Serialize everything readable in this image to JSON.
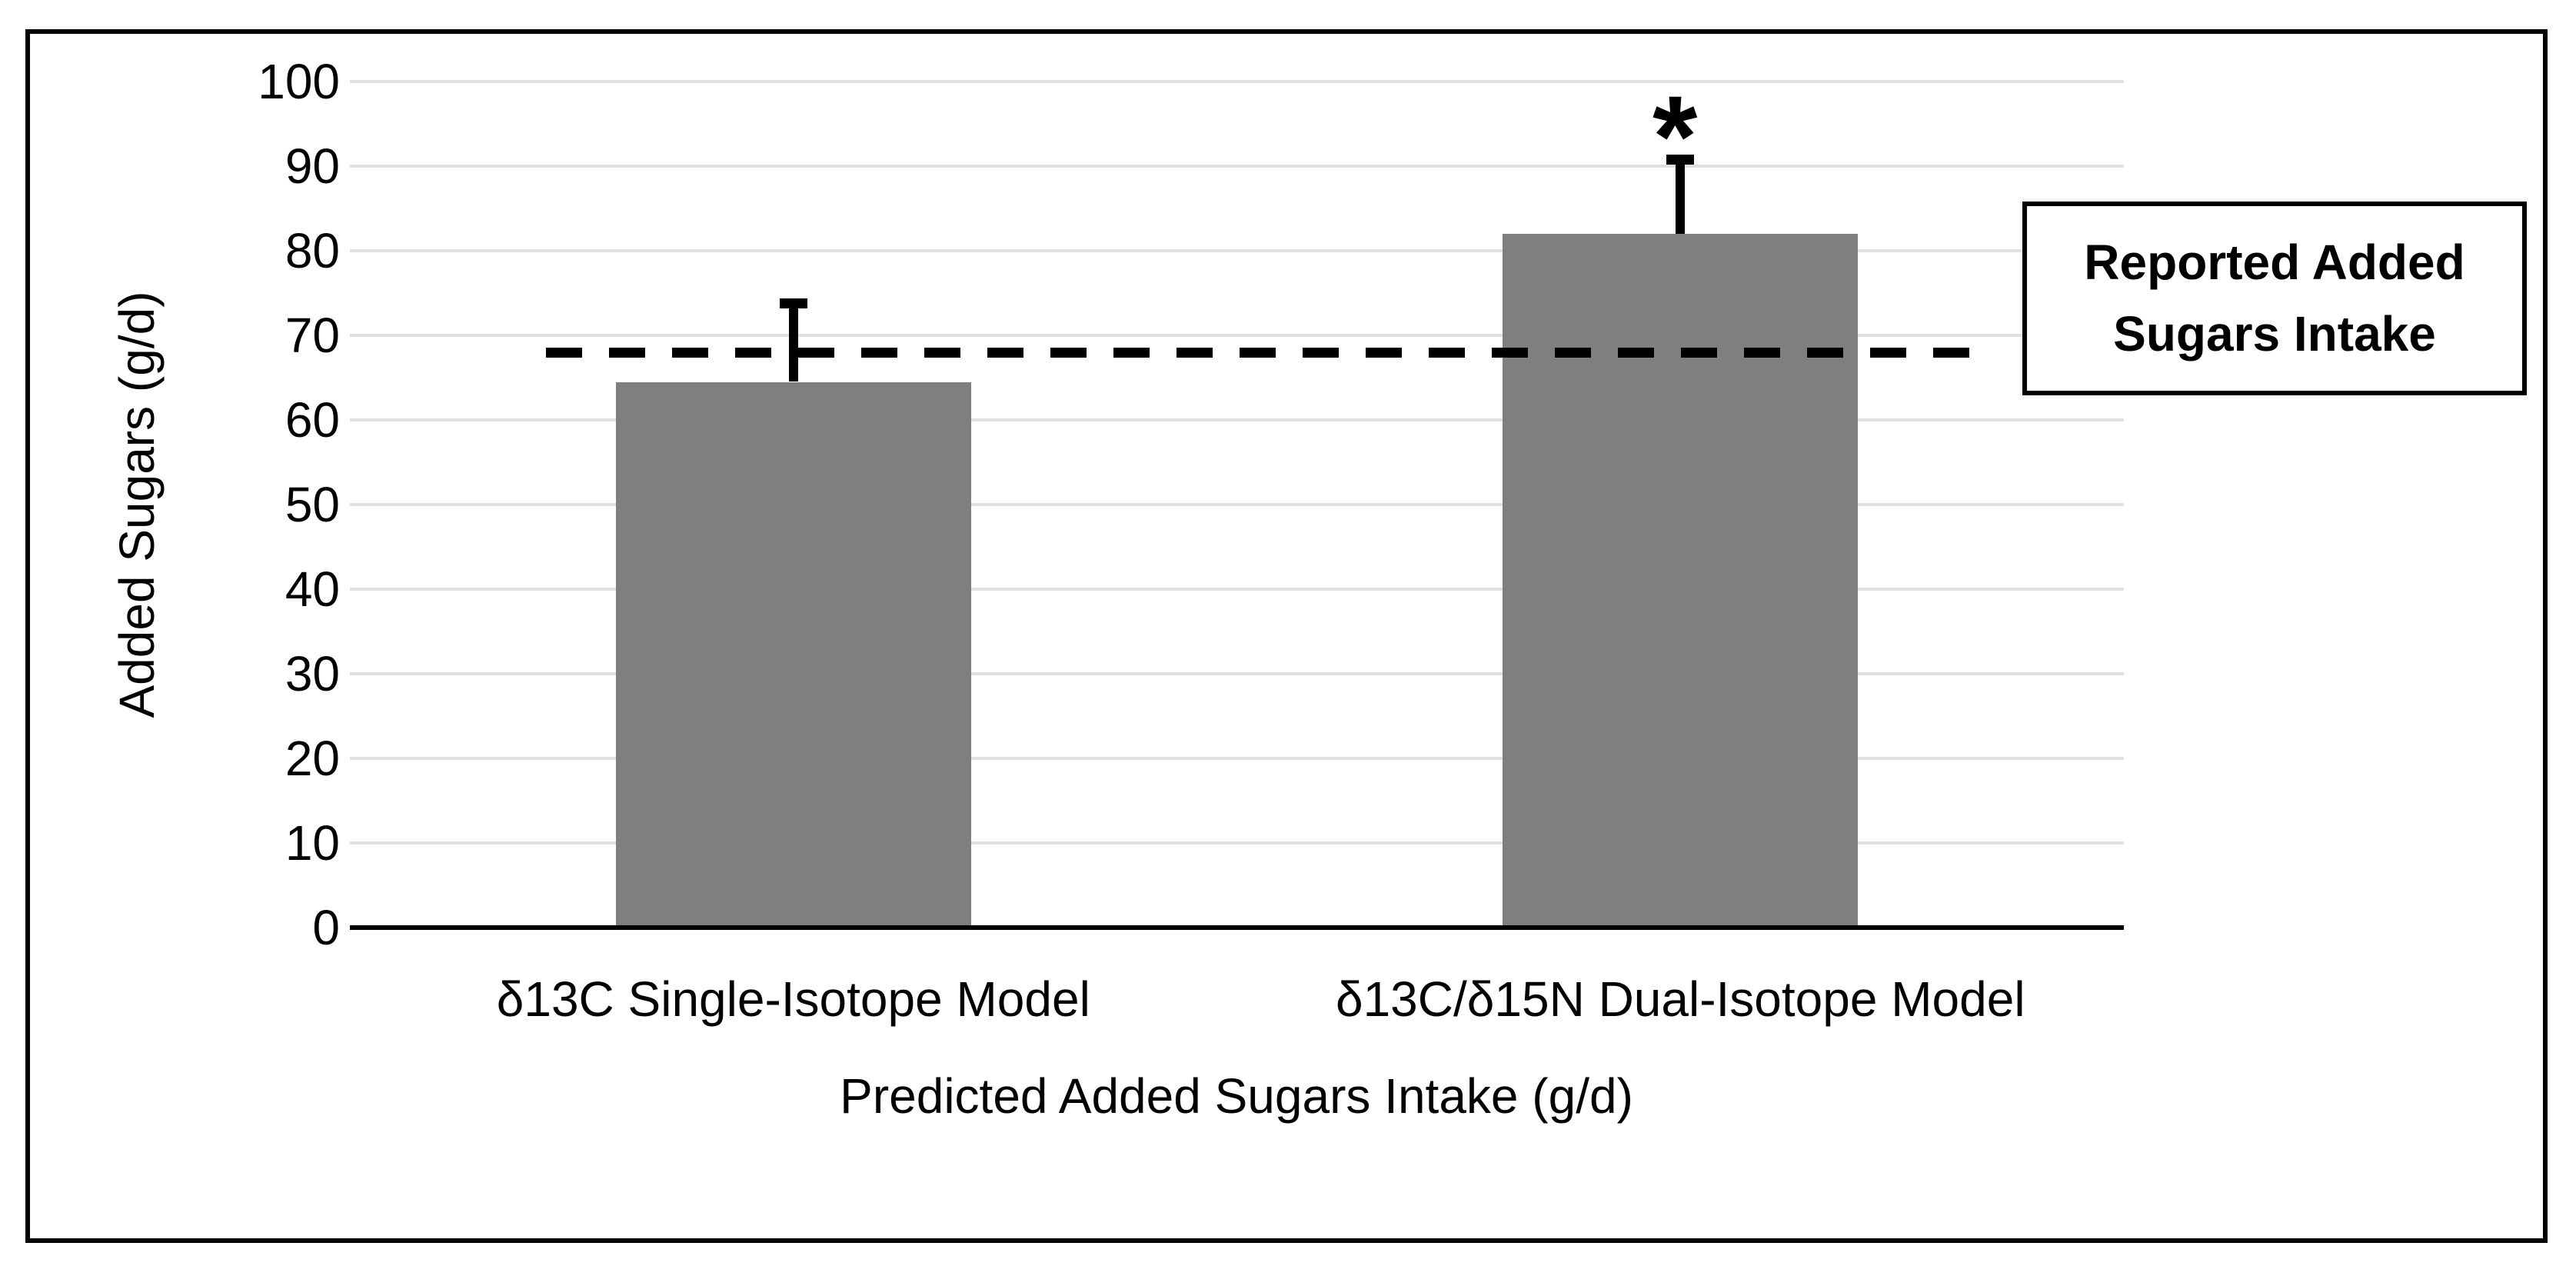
{
  "chart_data": {
    "type": "bar",
    "title": "",
    "categories": [
      "δ13C Single-Isotope Model",
      "δ13C/δ15N Dual-Isotope Model"
    ],
    "values": [
      64.5,
      82
    ],
    "errors_upper": [
      9.3,
      8.8
    ],
    "xlabel": "Predicted Added Sugars Intake (g/d)",
    "ylabel": "Added Sugars (g/d)",
    "ylim": [
      0,
      100
    ],
    "yticks": [
      0,
      10,
      20,
      30,
      40,
      50,
      60,
      70,
      80,
      90,
      100
    ],
    "grid": "horizontal",
    "gridline_color": "#e0e0e0",
    "axis_line_color": "#000000",
    "bar_color": "#7f7f7f",
    "legend_position": "none",
    "reference_line": {
      "value": 68,
      "style": "dashed",
      "color": "#000000",
      "label": "Reported Added Sugars Intake"
    },
    "significance": {
      "marker": "*",
      "category_index": 1
    }
  }
}
